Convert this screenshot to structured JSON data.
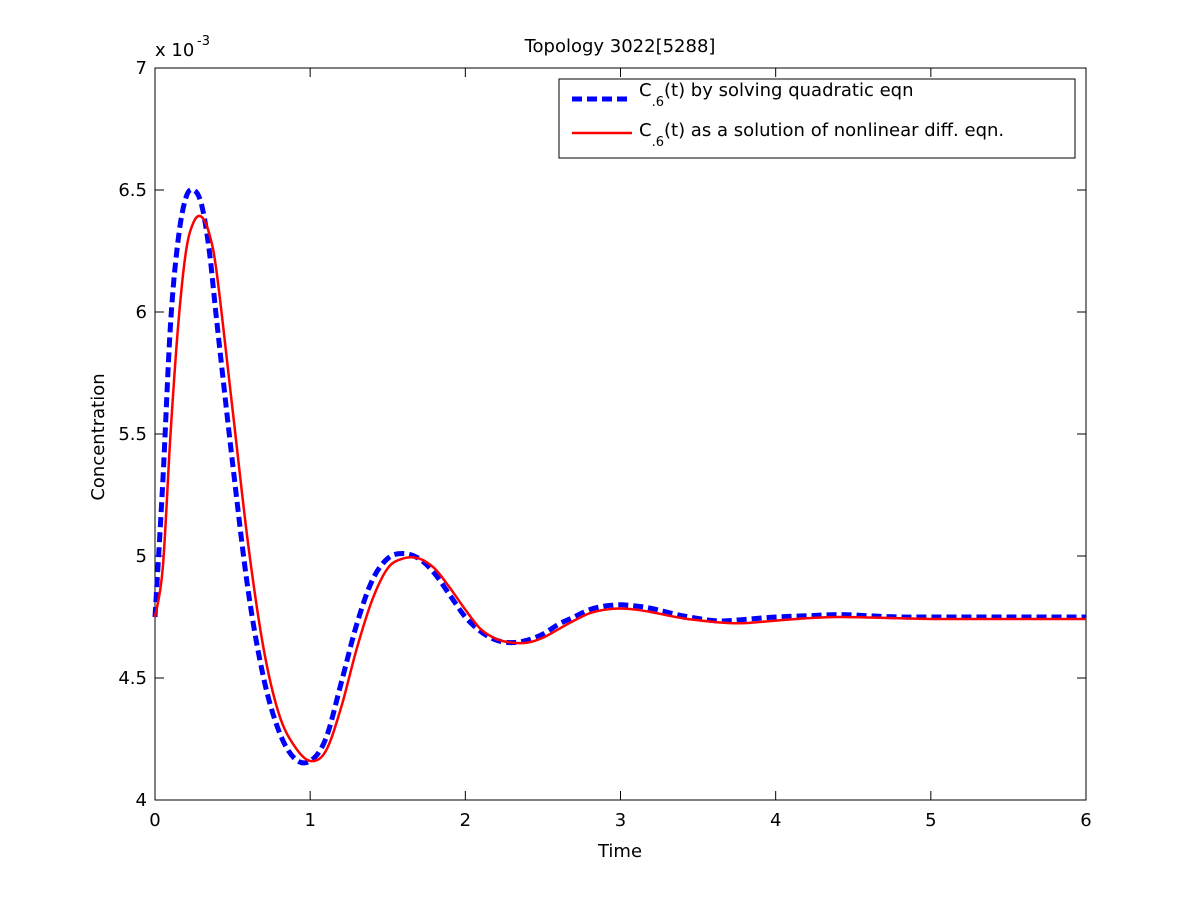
{
  "chart_data": {
    "type": "line",
    "title": "Topology 3022[5288]",
    "xlabel": "Time",
    "ylabel": "Concentration",
    "exponent_base": "x 10",
    "exponent_power": "-3",
    "xlim": [
      0,
      6
    ],
    "ylim": [
      4,
      7
    ],
    "y_scale_factor": 0.001,
    "xticks": [
      0,
      1,
      2,
      3,
      4,
      5,
      6
    ],
    "xtick_labels": [
      "0",
      "1",
      "2",
      "3",
      "4",
      "5",
      "6"
    ],
    "yticks": [
      4,
      4.5,
      5,
      5.5,
      6,
      6.5,
      7
    ],
    "ytick_labels": [
      "4",
      "4.5",
      "5",
      "5.5",
      "6",
      "6.5",
      "7"
    ],
    "grid": false,
    "legend_position": "top-right",
    "series": [
      {
        "name": "C.6(t) by solving quadratic eqn",
        "legend_prefix": "C",
        "legend_subscript": ".6",
        "legend_suffix": "(t) by solving quadratic eqn",
        "color": "#0000ff",
        "style": "dashed",
        "x": [
          0,
          0.05,
          0.1,
          0.15,
          0.2,
          0.25,
          0.3,
          0.35,
          0.4,
          0.5,
          0.6,
          0.7,
          0.8,
          0.9,
          1.0,
          1.1,
          1.2,
          1.3,
          1.4,
          1.5,
          1.6,
          1.7,
          1.8,
          1.9,
          2.0,
          2.1,
          2.2,
          2.3,
          2.4,
          2.5,
          2.6,
          2.7,
          2.8,
          2.9,
          3.0,
          3.1,
          3.2,
          3.4,
          3.6,
          3.7,
          3.8,
          4.0,
          4.2,
          4.4,
          4.6,
          4.8,
          5.0,
          5.5,
          6.0
        ],
        "y": [
          4.75,
          5.3,
          5.95,
          6.3,
          6.47,
          6.5,
          6.44,
          6.25,
          5.95,
          5.38,
          4.86,
          4.5,
          4.28,
          4.17,
          4.16,
          4.25,
          4.48,
          4.72,
          4.9,
          4.99,
          5.01,
          4.99,
          4.93,
          4.84,
          4.75,
          4.69,
          4.655,
          4.645,
          4.655,
          4.68,
          4.72,
          4.75,
          4.78,
          4.795,
          4.8,
          4.795,
          4.785,
          4.755,
          4.735,
          4.735,
          4.74,
          4.75,
          4.755,
          4.76,
          4.755,
          4.75,
          4.75,
          4.75,
          4.75
        ]
      },
      {
        "name": "C.6(t) as a solution of nonlinear diff. eqn.",
        "legend_prefix": "C",
        "legend_subscript": ".6",
        "legend_suffix": "(t) as a solution of nonlinear diff. eqn.",
        "color": "#ff0000",
        "style": "solid",
        "x": [
          0,
          0.05,
          0.1,
          0.15,
          0.2,
          0.25,
          0.3,
          0.35,
          0.4,
          0.5,
          0.6,
          0.7,
          0.8,
          0.9,
          1.0,
          1.1,
          1.2,
          1.3,
          1.4,
          1.5,
          1.6,
          1.7,
          1.8,
          1.9,
          2.0,
          2.1,
          2.2,
          2.3,
          2.4,
          2.5,
          2.6,
          2.7,
          2.8,
          2.9,
          3.0,
          3.1,
          3.2,
          3.4,
          3.6,
          3.7,
          3.8,
          4.0,
          4.2,
          4.4,
          4.6,
          4.8,
          5.0,
          5.5,
          6.0
        ],
        "y": [
          4.75,
          4.95,
          5.5,
          5.95,
          6.25,
          6.37,
          6.39,
          6.32,
          6.15,
          5.6,
          5.05,
          4.62,
          4.35,
          4.22,
          4.16,
          4.2,
          4.38,
          4.62,
          4.82,
          4.95,
          4.99,
          4.99,
          4.95,
          4.87,
          4.78,
          4.7,
          4.66,
          4.645,
          4.645,
          4.665,
          4.7,
          4.735,
          4.765,
          4.78,
          4.785,
          4.78,
          4.77,
          4.745,
          4.73,
          4.725,
          4.725,
          4.735,
          4.745,
          4.75,
          4.748,
          4.745,
          4.742,
          4.742,
          4.742
        ]
      }
    ]
  }
}
